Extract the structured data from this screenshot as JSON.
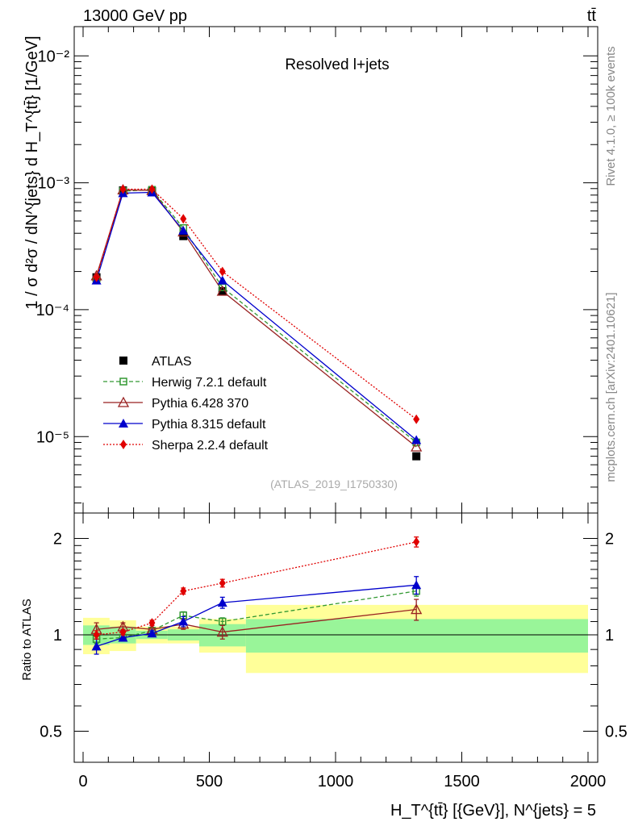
{
  "header": {
    "energy_label": "13000 GeV pp",
    "process_label": "tt̄"
  },
  "side_labels": {
    "rivet": "Rivet 4.1.0, ≥ 100k events",
    "mcplots": "mcplots.cern.ch [arXiv:2401.10621]"
  },
  "main_panel": {
    "title": "Resolved l+jets",
    "analysis_id": "(ATLAS_2019_I1750330)",
    "ylabel": "1 / σ d²σ / dN^{jets} d H_T^{tt̄} [1/GeV]",
    "ytick_labels": [
      "10⁻⁵",
      "10⁻⁴",
      "10⁻³",
      "10⁻²"
    ]
  },
  "ratio_panel": {
    "ylabel": "Ratio to ATLAS",
    "ytick_labels": [
      "0.5",
      "1",
      "2"
    ]
  },
  "xaxis": {
    "label": "H_T^{tt̄} [{GeV}], N^{jets} = 5",
    "tick_labels": [
      "0",
      "500",
      "1000",
      "1500",
      "2000"
    ]
  },
  "chart_data": {
    "type": "line",
    "title": "Resolved l+jets",
    "xlabel": "H_T^{tt̄} [GeV], N^{jets} = 5",
    "ylabel": "1/σ d²σ / dN^{jets} dH_T^{tt̄} [1/GeV]",
    "xlim": [
      -50,
      2000
    ],
    "ylim": [
      2.5e-06,
      0.017
    ],
    "yscale": "log",
    "ratio_ylim": [
      0.4,
      2.4
    ],
    "ratio_ylabel": "Ratio to ATLAS",
    "legend_position": "bottom-left",
    "bin_edges": [
      0,
      105,
      210,
      335,
      460,
      645,
      2000
    ],
    "x": [
      53,
      158,
      273,
      397,
      552,
      1320
    ],
    "data": {
      "name": "ATLAS",
      "values": [
        0.00018,
        0.00087,
        0.00086,
        0.00038,
        0.00014,
        7e-06
      ],
      "ratio_band_stat": [
        0.07,
        0.06,
        0.03,
        0.04,
        0.08,
        0.12
      ],
      "ratio_band_total": [
        0.13,
        0.11,
        0.06,
        0.06,
        0.12,
        0.24
      ]
    },
    "series": [
      {
        "name": "Herwig 7.2.1 default",
        "color": "#339933",
        "dash": "5,3",
        "marker": "open-square",
        "values": [
          0.00017,
          0.00086,
          0.00088,
          0.00044,
          0.00015,
          9e-06
        ],
        "ratio": [
          0.97,
          0.98,
          1.03,
          1.15,
          1.1,
          1.37
        ],
        "ratio_err": [
          0.03,
          0.02,
          0.02,
          0.03,
          0.03,
          0.05
        ]
      },
      {
        "name": "Pythia 6.428 370",
        "color": "#992222",
        "dash": "",
        "marker": "open-triangle",
        "values": [
          0.000185,
          0.00088,
          0.00087,
          0.00041,
          0.00014,
          8.3e-06
        ],
        "ratio": [
          1.04,
          1.06,
          1.04,
          1.08,
          1.02,
          1.2
        ],
        "ratio_err": [
          0.05,
          0.03,
          0.03,
          0.04,
          0.05,
          0.09
        ]
      },
      {
        "name": "Pythia 8.315 default",
        "color": "#0000cc",
        "dash": "",
        "marker": "filled-triangle",
        "values": [
          0.00017,
          0.00083,
          0.00084,
          0.00042,
          0.00017,
          9.4e-06
        ],
        "ratio": [
          0.92,
          0.98,
          1.01,
          1.1,
          1.26,
          1.43
        ],
        "ratio_err": [
          0.05,
          0.02,
          0.02,
          0.04,
          0.05,
          0.09
        ]
      },
      {
        "name": "Sherpa 2.2.4 default",
        "color": "#e00000",
        "dash": "2,2",
        "marker": "filled-diamond",
        "values": [
          0.00018,
          0.00089,
          0.00089,
          0.00052,
          0.0002,
          1.37e-05
        ],
        "ratio": [
          1.0,
          1.02,
          1.09,
          1.37,
          1.45,
          1.95
        ],
        "ratio_err": [
          0.03,
          0.02,
          0.02,
          0.03,
          0.04,
          0.07
        ]
      }
    ]
  }
}
